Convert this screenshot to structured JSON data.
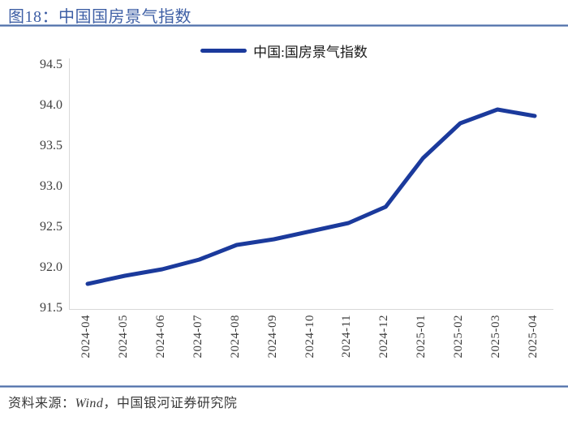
{
  "header": {
    "title": "图18：中国国房景气指数"
  },
  "chart_data": {
    "type": "line",
    "title": "图18：中国国房景气指数",
    "legend": "中国:国房景气指数",
    "categories": [
      "2024-04",
      "2024-05",
      "2024-06",
      "2024-07",
      "2024-08",
      "2024-09",
      "2024-10",
      "2024-11",
      "2024-12",
      "2025-01",
      "2025-02",
      "2025-03",
      "2025-04"
    ],
    "values": [
      91.8,
      91.9,
      91.98,
      92.1,
      92.28,
      92.35,
      92.45,
      92.55,
      92.75,
      93.35,
      93.78,
      93.95,
      93.87
    ],
    "ylim": [
      91.5,
      94.5
    ],
    "y_tick_labels": [
      "94.5",
      "94.0",
      "93.5",
      "93.0",
      "92.5",
      "92.0",
      "91.5"
    ],
    "y_tick_values": [
      94.5,
      94.0,
      93.5,
      93.0,
      92.5,
      92.0,
      91.5
    ],
    "grid": false,
    "legend_position": "top-center",
    "line_color": "#1B3A9C"
  },
  "footer": {
    "source_prefix": "资料来源：",
    "source_wind": "Wind",
    "source_suffix": "，中国银河证券研究院"
  },
  "colors": {
    "title_blue": "#3E5FA5",
    "rule_blue": "#4F6FA8",
    "line_navy": "#1B3A9C",
    "axis_text": "#404040",
    "spine_gray": "#D9D9D9"
  }
}
